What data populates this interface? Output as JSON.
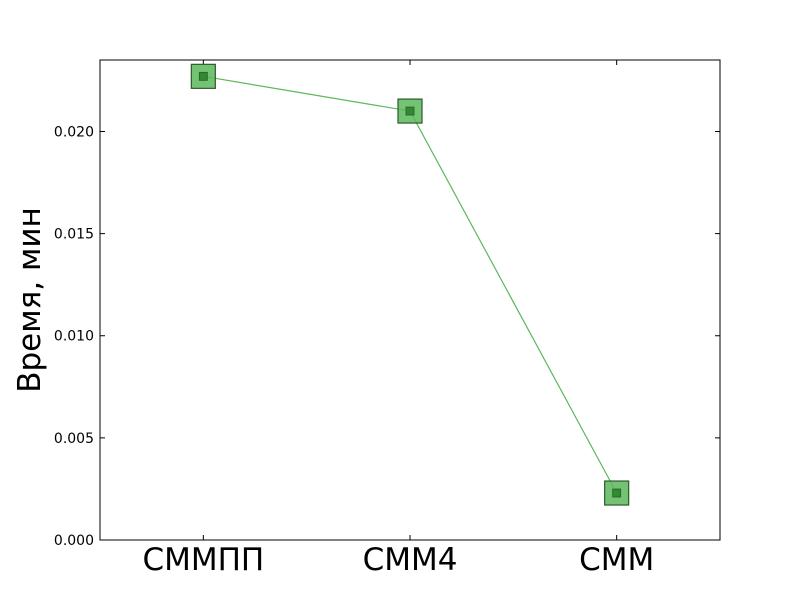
{
  "chart_data": {
    "type": "line",
    "categories": [
      "СММПП",
      "СММ4",
      "СММ"
    ],
    "series": [
      {
        "values": [
          0.0227,
          0.021,
          0.0023
        ]
      }
    ],
    "title": "",
    "xlabel": "",
    "ylabel": "Время, мин",
    "ylim": [
      0.0,
      0.0235
    ],
    "yticks": [
      0.0,
      0.005,
      0.01,
      0.015,
      0.02
    ],
    "ytick_labels": [
      "0.000",
      "0.005",
      "0.010",
      "0.015",
      "0.020"
    ],
    "grid": false,
    "legend": "none",
    "colors": {
      "line": "#5cb85c",
      "marker_fill": "#5cb85c",
      "marker_edge": "#2d5a2d",
      "inner_marker_fill": "#2e8b2e"
    }
  }
}
